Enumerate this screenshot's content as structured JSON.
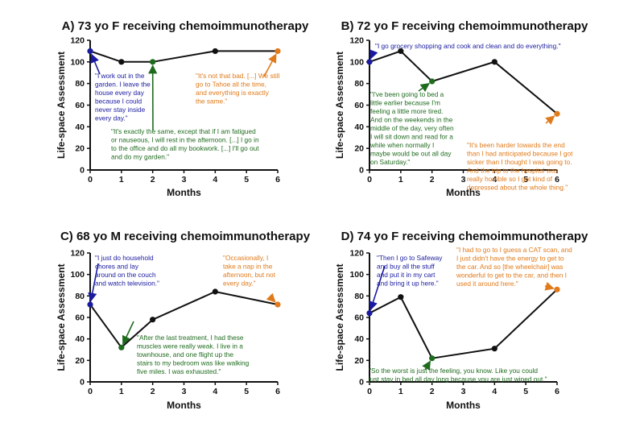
{
  "colors": {
    "blue": "#1a1aa0",
    "green": "#1e6b1e",
    "orange": "#e07a1a",
    "line": "#111111"
  },
  "chart_data": [
    {
      "type": "line",
      "title": "A) 73 yo F receiving chemoimmunotherapy",
      "xlabel": "Months",
      "ylabel": "Life-space Assessment",
      "xlim": [
        0,
        6
      ],
      "ylim": [
        0,
        120
      ],
      "xticks": [
        "0",
        "1",
        "2",
        "3",
        "4",
        "5",
        "6"
      ],
      "yticks": [
        "0",
        "20",
        "40",
        "60",
        "80",
        "100",
        "120"
      ],
      "x": [
        0,
        1,
        2,
        4,
        6
      ],
      "y": [
        110,
        100,
        100,
        110,
        110
      ],
      "point_colors": [
        "blue",
        "black",
        "green",
        "black",
        "orange"
      ],
      "annotations": [
        {
          "color": "blue",
          "target_index": 0,
          "lines": [
            "\"I work out in the",
            "garden. I leave the",
            "house every day",
            "because I could",
            "never stay inside",
            "every day.\""
          ]
        },
        {
          "color": "green",
          "target_index": 2,
          "lines": [
            "\"It's exactly the same, except that if I am fatigued",
            "or nauseous, I will rest in the afternoon. [...] I go in",
            "to the office and do all my bookwork. [...] I'll go out",
            "and do my garden.\""
          ]
        },
        {
          "color": "orange",
          "target_index": 4,
          "lines": [
            "\"It's not that bad. [...] We still",
            "go to Tahoe all the time,",
            "and everything is exactly",
            "the same.\""
          ]
        }
      ]
    },
    {
      "type": "line",
      "title": "B) 72 yo F receiving chemoimmunotherapy",
      "xlabel": "Months",
      "ylabel": "Life-space Assessment",
      "xlim": [
        0,
        6
      ],
      "ylim": [
        0,
        120
      ],
      "xticks": [
        "0",
        "1",
        "2",
        "3",
        "4",
        "5",
        "6"
      ],
      "yticks": [
        "0",
        "20",
        "40",
        "60",
        "80",
        "100",
        "120"
      ],
      "x": [
        0,
        1,
        2,
        4,
        6
      ],
      "y": [
        100,
        110,
        82,
        100,
        52
      ],
      "point_colors": [
        "blue",
        "black",
        "green",
        "black",
        "orange"
      ],
      "annotations": [
        {
          "color": "blue",
          "target_index": 0,
          "lines": [
            "\"I go grocery shopping and cook and clean and do everything.\""
          ]
        },
        {
          "color": "green",
          "target_index": 2,
          "lines": [
            "\"I've been going to bed a",
            "little earlier because I'm",
            "feeling a little more tired.",
            "And on the weekends in the",
            "middle of the day, very often",
            "I will sit down and read for a",
            "while when normally I",
            "maybe would be out all day",
            "on Saturday.\""
          ]
        },
        {
          "color": "orange",
          "target_index": 4,
          "lines": [
            "\"It's been harder towards the end",
            "than I had anticipated because I got",
            "sicker than I thought I was going to.",
            "And the trip to the hospital was",
            "really horrible so I got kind of",
            "depressed about the whole thing.\""
          ]
        }
      ]
    },
    {
      "type": "line",
      "title": "C) 68 yo M receiving chemoimmunotherapy",
      "xlabel": "Months",
      "ylabel": "Life-space Assessment",
      "xlim": [
        0,
        6
      ],
      "ylim": [
        0,
        120
      ],
      "xticks": [
        "0",
        "1",
        "2",
        "3",
        "4",
        "5",
        "6"
      ],
      "yticks": [
        "0",
        "20",
        "40",
        "60",
        "80",
        "100",
        "120"
      ],
      "x": [
        0,
        1,
        2,
        4,
        6
      ],
      "y": [
        72,
        32,
        58,
        84,
        72
      ],
      "point_colors": [
        "blue",
        "green",
        "black",
        "black",
        "orange"
      ],
      "annotations": [
        {
          "color": "blue",
          "target_index": 0,
          "lines": [
            "\"I just do household",
            "chores and lay",
            "around on the couch",
            "and watch television.\""
          ]
        },
        {
          "color": "green",
          "target_index": 1,
          "lines": [
            "\"After the last treatment, I had these",
            "muscles were really weak. I live in a",
            "townhouse, and one flight up the",
            "stairs to my bedroom was like walking",
            "five miles. I was exhausted.\""
          ]
        },
        {
          "color": "orange",
          "target_index": 4,
          "lines": [
            "\"Occasionally, I",
            "take a nap in the",
            "afternoon, but not",
            "every day.\""
          ]
        }
      ]
    },
    {
      "type": "line",
      "title": "D) 74 yo F receiving chemoimmunotherapy",
      "xlabel": "Months",
      "ylabel": "Life-space Assessment",
      "xlim": [
        0,
        6
      ],
      "ylim": [
        0,
        120
      ],
      "xticks": [
        "0",
        "1",
        "2",
        "3",
        "4",
        "5",
        "6"
      ],
      "yticks": [
        "0",
        "20",
        "40",
        "60",
        "80",
        "100",
        "120"
      ],
      "x": [
        0,
        1,
        2,
        4,
        6
      ],
      "y": [
        64,
        79,
        22,
        31,
        86
      ],
      "point_colors": [
        "blue",
        "black",
        "green",
        "black",
        "orange"
      ],
      "annotations": [
        {
          "color": "blue",
          "target_index": 0,
          "lines": [
            "\"Then I go to Safeway",
            "and buy all the stuff",
            "and put it in my cart",
            "and bring it up here.\""
          ]
        },
        {
          "color": "green",
          "target_index": 2,
          "lines": [
            "\"So the worst is just the feeling, you know. Like you could",
            "just stay in bed all day long because you are just wiped out.\""
          ]
        },
        {
          "color": "orange",
          "target_index": 4,
          "lines": [
            "\"I had to go to I guess a CAT scan, and",
            "I just didn't have the energy to get to",
            "the car. And so [the wheelchair] was",
            "wonderful to get to the car, and then I",
            "used it around here.\""
          ]
        }
      ]
    }
  ]
}
